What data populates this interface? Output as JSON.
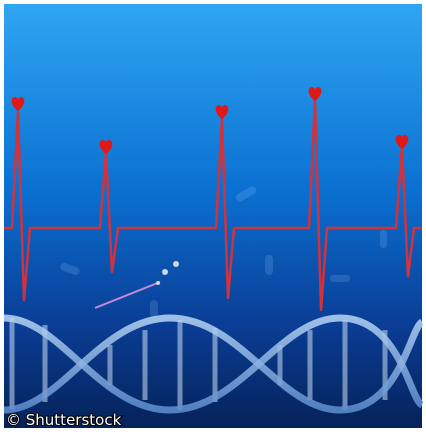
{
  "watermark": "© Shutterstock"
}
